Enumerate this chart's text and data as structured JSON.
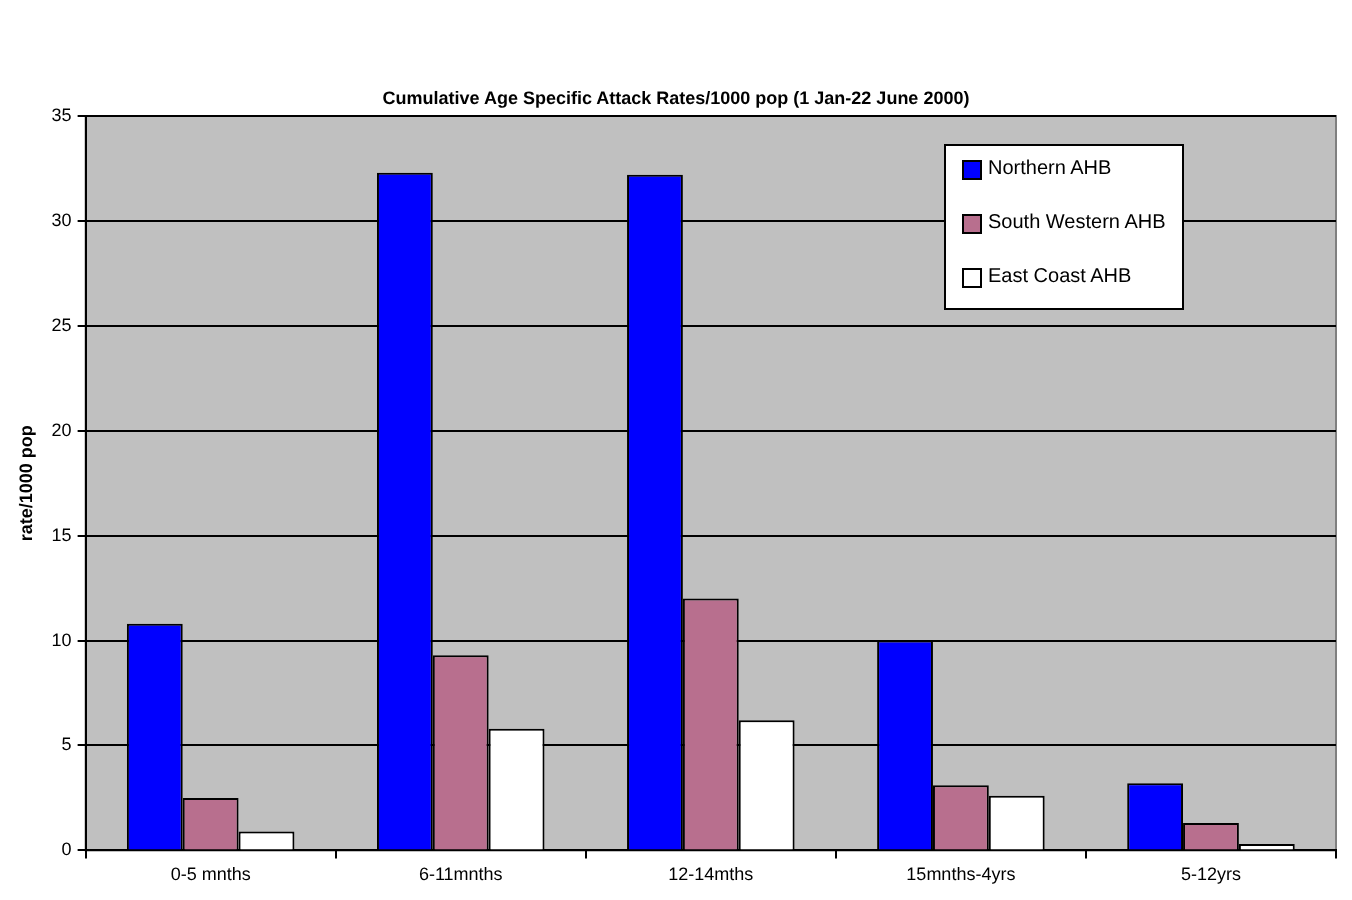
{
  "chart_data": {
    "type": "bar",
    "title": "Cumulative Age Specific Attack Rates/1000 pop (1 Jan-22 June 2000)",
    "ylabel": "rate/1000 pop",
    "categories": [
      "0-5 mnths",
      "6-11mnths",
      "12-14mths",
      "15mnths-4yrs",
      "5-12yrs"
    ],
    "series": [
      {
        "name": "Northern AHB",
        "color": "#0000ff",
        "values": [
          10.8,
          32.3,
          32.2,
          10.0,
          3.2
        ]
      },
      {
        "name": "South Western AHB",
        "color": "#b86f8e",
        "values": [
          2.5,
          9.3,
          12.0,
          3.1,
          1.3
        ]
      },
      {
        "name": "East Coast AHB",
        "color": "#ffffff",
        "values": [
          0.9,
          5.8,
          6.2,
          2.6,
          0.3
        ]
      }
    ],
    "ylim": [
      0,
      35
    ],
    "yticks": [
      0,
      5,
      10,
      15,
      20,
      25,
      30,
      35
    ],
    "grid": "y",
    "legend": "top right"
  }
}
